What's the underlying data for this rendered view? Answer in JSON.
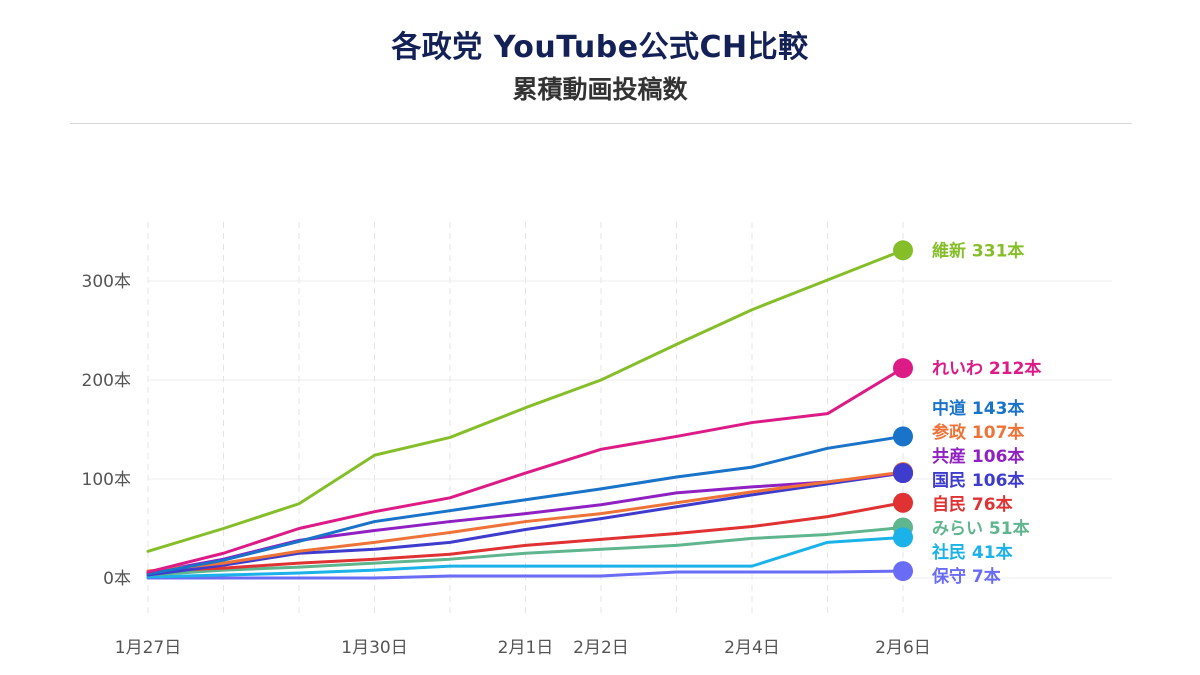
{
  "title": "各政党 YouTube公式CH比較",
  "subtitle": "累積動画投稿数",
  "chart_data": {
    "type": "line",
    "title": "各政党 YouTube公式CH比較",
    "subtitle": "累積動画投稿数",
    "x": [
      "1/27",
      "1/28",
      "1/29",
      "1/30",
      "1/31",
      "2/1",
      "2/2",
      "2/3",
      "2/4",
      "2/5",
      "2/6"
    ],
    "x_tick_labels": [
      {
        "x": "1/27",
        "label": "1月27日"
      },
      {
        "x": "1/30",
        "label": "1月30日"
      },
      {
        "x": "2/1",
        "label": "2月1日"
      },
      {
        "x": "2/2",
        "label": "2月2日"
      },
      {
        "x": "2/4",
        "label": "2月4日"
      },
      {
        "x": "2/6",
        "label": "2月6日"
      }
    ],
    "y_ticks": [
      {
        "value": 0,
        "label": "0本"
      },
      {
        "value": 100,
        "label": "100本"
      },
      {
        "value": 200,
        "label": "200本"
      },
      {
        "value": 300,
        "label": "300本"
      }
    ],
    "ylim": [
      -40,
      360
    ],
    "grid": true,
    "series": [
      {
        "name": "維新",
        "label": "維新 331本",
        "color": "#86be2a",
        "values": [
          27,
          50,
          75,
          124,
          142,
          172,
          200,
          236,
          271,
          301,
          331
        ]
      },
      {
        "name": "れいわ",
        "label": "れいわ 212本",
        "color": "#dd1b86",
        "values": [
          6,
          25,
          50,
          67,
          81,
          106,
          130,
          143,
          157,
          166,
          212
        ]
      },
      {
        "name": "中道",
        "label": "中道 143本",
        "color": "#1973c9",
        "values": [
          4,
          18,
          37,
          57,
          68,
          79,
          90,
          102,
          112,
          131,
          143
        ]
      },
      {
        "name": "参政",
        "label": "参政 107本",
        "color": "#ee7338",
        "values": [
          7,
          15,
          27,
          36,
          46,
          57,
          65,
          76,
          87,
          97,
          107
        ]
      },
      {
        "name": "共産",
        "label": "共産 106本",
        "color": "#8f21c3",
        "values": [
          5,
          19,
          38,
          48,
          57,
          65,
          74,
          86,
          92,
          97,
          106
        ]
      },
      {
        "name": "国民",
        "label": "国民 106本",
        "color": "#3e3ccd",
        "values": [
          3,
          13,
          25,
          29,
          36,
          49,
          60,
          72,
          84,
          95,
          106
        ]
      },
      {
        "name": "自民",
        "label": "自民 76本",
        "color": "#e03232",
        "values": [
          7,
          10,
          15,
          19,
          24,
          33,
          39,
          45,
          52,
          62,
          76
        ]
      },
      {
        "name": "みらい",
        "label": "みらい 51本",
        "color": "#5fb58e",
        "values": [
          3,
          8,
          11,
          15,
          19,
          25,
          29,
          33,
          40,
          44,
          51
        ]
      },
      {
        "name": "社民",
        "label": "社民 41本",
        "color": "#1ab2e8",
        "values": [
          1,
          3,
          5,
          8,
          12,
          12,
          12,
          12,
          12,
          36,
          41
        ]
      },
      {
        "name": "保守",
        "label": "保守 7本",
        "color": "#6a6cf5",
        "values": [
          0,
          0,
          0,
          0,
          2,
          2,
          2,
          6,
          6,
          6,
          7
        ]
      }
    ]
  }
}
